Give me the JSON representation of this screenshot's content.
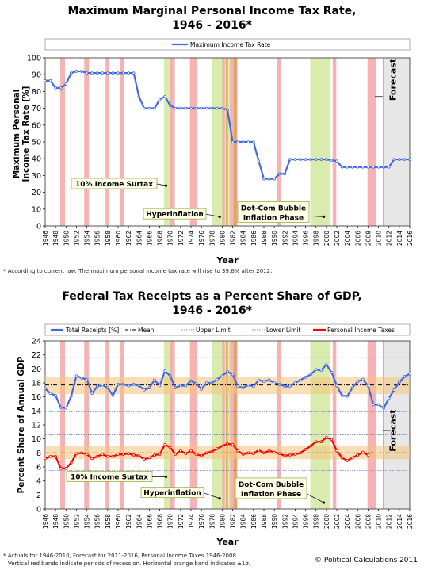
{
  "chart_data": [
    {
      "type": "line",
      "title": "Maximum Marginal Personal Income Tax Rate,",
      "subtitle": "1946 - 2016*",
      "ylabel": "Maximum Personal Income Tax Rate [%]",
      "xlabel": "Year",
      "ylim": [
        0,
        100
      ],
      "yticks": [
        0,
        10,
        20,
        30,
        40,
        50,
        60,
        70,
        80,
        90,
        100
      ],
      "xlim": [
        1946,
        2016
      ],
      "xticks": [
        1946,
        1948,
        1950,
        1952,
        1954,
        1956,
        1958,
        1960,
        1962,
        1964,
        1966,
        1968,
        1970,
        1972,
        1974,
        1976,
        1978,
        1980,
        1982,
        1984,
        1986,
        1988,
        1990,
        1992,
        1994,
        1996,
        1998,
        2000,
        2002,
        2004,
        2006,
        2008,
        2010,
        2012,
        2014,
        2016
      ],
      "legend": {
        "position": "top",
        "entries": [
          "Maximum Income Tax Rate"
        ]
      },
      "forecast_label": "Forecast",
      "forecast_start": 2011,
      "series": [
        {
          "name": "Maximum Income Tax Rate",
          "color": "#4169e1",
          "x": [
            1946,
            1947,
            1948,
            1949,
            1950,
            1951,
            1952,
            1953,
            1954,
            1955,
            1956,
            1957,
            1958,
            1959,
            1960,
            1961,
            1962,
            1963,
            1964,
            1965,
            1966,
            1967,
            1968,
            1969,
            1970,
            1971,
            1972,
            1973,
            1974,
            1975,
            1976,
            1977,
            1978,
            1979,
            1980,
            1981,
            1982,
            1983,
            1984,
            1985,
            1986,
            1987,
            1988,
            1989,
            1990,
            1991,
            1992,
            1993,
            1994,
            1995,
            1996,
            1997,
            1998,
            1999,
            2000,
            2001,
            2002,
            2003,
            2004,
            2005,
            2006,
            2007,
            2008,
            2009,
            2010,
            2011,
            2012,
            2013,
            2014,
            2015,
            2016
          ],
          "values": [
            86.45,
            86.45,
            82.13,
            82.13,
            84.36,
            91,
            92,
            92,
            91,
            91,
            91,
            91,
            91,
            91,
            91,
            91,
            91,
            91,
            77,
            70,
            70,
            70,
            75.25,
            77,
            71.75,
            70,
            70,
            70,
            70,
            70,
            70,
            70,
            70,
            70,
            70,
            69.13,
            50,
            50,
            50,
            50,
            50,
            38.5,
            28,
            28,
            28,
            31,
            31,
            39.6,
            39.6,
            39.6,
            39.6,
            39.6,
            39.6,
            39.6,
            39.6,
            39.1,
            38.6,
            35,
            35,
            35,
            35,
            35,
            35,
            35,
            35,
            35,
            35,
            39.6,
            39.6,
            39.6,
            39.6
          ]
        }
      ],
      "annotations": [
        "10% Income Surtax",
        "Hyperinflation",
        "Dot-Com Bubble",
        "Inflation Phase"
      ]
    },
    {
      "type": "line",
      "title": "Federal Tax Receipts as a Percent Share of GDP,",
      "subtitle": "1946 - 2016*",
      "ylabel": "Percent Share of Annual GDP",
      "xlabel": "Year",
      "ylim": [
        0,
        24
      ],
      "yticks": [
        0,
        2,
        4,
        6,
        8,
        10,
        12,
        14,
        16,
        18,
        20,
        22,
        24
      ],
      "xlim": [
        1946,
        2016
      ],
      "xticks": [
        1946,
        1948,
        1950,
        1952,
        1954,
        1956,
        1958,
        1960,
        1962,
        1964,
        1966,
        1968,
        1970,
        1972,
        1974,
        1976,
        1978,
        1980,
        1982,
        1984,
        1986,
        1988,
        1990,
        1992,
        1994,
        1996,
        1998,
        2000,
        2002,
        2004,
        2006,
        2008,
        2010,
        2012,
        2014,
        2016
      ],
      "legend": {
        "position": "top",
        "entries": [
          "Total Receipts [%]",
          "Mean",
          "Upper Limit",
          "Lower Limit",
          "Personal Income Taxes"
        ]
      },
      "forecast_label": "Forecast",
      "forecast_start": 2011,
      "mean_total": 17.7,
      "band_total": [
        16.4,
        18.9
      ],
      "mean_personal": 8.0,
      "band_personal": [
        7.1,
        9.0
      ],
      "upper_limit_total": 21.6,
      "lower_limit_total": 13.9,
      "upper_limit_personal": 10.6,
      "lower_limit_personal": 5.5,
      "series": [
        {
          "name": "Total Receipts [%]",
          "color": "#4169e1",
          "x": [
            1946,
            1947,
            1948,
            1949,
            1950,
            1951,
            1952,
            1953,
            1954,
            1955,
            1956,
            1957,
            1958,
            1959,
            1960,
            1961,
            1962,
            1963,
            1964,
            1965,
            1966,
            1967,
            1968,
            1969,
            1970,
            1971,
            1972,
            1973,
            1974,
            1975,
            1976,
            1977,
            1978,
            1979,
            1980,
            1981,
            1982,
            1983,
            1984,
            1985,
            1986,
            1987,
            1988,
            1989,
            1990,
            1991,
            1992,
            1993,
            1994,
            1995,
            1996,
            1997,
            1998,
            1999,
            2000,
            2001,
            2002,
            2003,
            2004,
            2005,
            2006,
            2007,
            2008,
            2009,
            2010,
            2011,
            2012,
            2013,
            2014,
            2015,
            2016
          ],
          "values": [
            17.2,
            16.5,
            16.2,
            14.5,
            14.4,
            16.1,
            19.0,
            18.7,
            18.5,
            16.5,
            17.5,
            17.7,
            17.3,
            16.2,
            17.8,
            17.8,
            17.6,
            17.8,
            17.6,
            17.0,
            17.3,
            18.4,
            17.6,
            19.7,
            19.0,
            17.3,
            17.6,
            17.6,
            18.3,
            17.9,
            17.1,
            18.0,
            18.0,
            18.5,
            19.0,
            19.6,
            19.2,
            17.5,
            17.3,
            17.7,
            17.5,
            18.4,
            18.2,
            18.4,
            18.0,
            17.8,
            17.5,
            17.5,
            18.0,
            18.4,
            18.8,
            19.2,
            19.9,
            19.8,
            20.6,
            19.5,
            17.6,
            16.2,
            16.1,
            17.3,
            18.2,
            18.5,
            17.6,
            14.9,
            14.9,
            14.4,
            15.8,
            17.0,
            18.1,
            18.9,
            19.3
          ]
        },
        {
          "name": "Personal Income Taxes",
          "color": "#ff0000",
          "x": [
            1946,
            1947,
            1948,
            1949,
            1950,
            1951,
            1952,
            1953,
            1954,
            1955,
            1956,
            1957,
            1958,
            1959,
            1960,
            1961,
            1962,
            1963,
            1964,
            1965,
            1966,
            1967,
            1968,
            1969,
            1970,
            1971,
            1972,
            1973,
            1974,
            1975,
            1976,
            1977,
            1978,
            1979,
            1980,
            1981,
            1982,
            1983,
            1984,
            1985,
            1986,
            1987,
            1988,
            1989,
            1990,
            1991,
            1992,
            1993,
            1994,
            1995,
            1996,
            1997,
            1998,
            1999,
            2000,
            2001,
            2002,
            2003,
            2004,
            2005,
            2006,
            2007,
            2008
          ],
          "values": [
            7.2,
            7.5,
            7.5,
            5.8,
            5.8,
            6.6,
            7.9,
            8.0,
            7.8,
            7.2,
            7.5,
            7.8,
            7.5,
            7.5,
            7.8,
            7.8,
            7.9,
            7.7,
            7.6,
            7.1,
            7.3,
            7.7,
            7.8,
            9.2,
            8.8,
            7.8,
            8.3,
            7.9,
            8.3,
            7.8,
            7.6,
            8.0,
            8.2,
            8.6,
            9.0,
            9.3,
            9.2,
            8.3,
            7.8,
            8.0,
            7.9,
            8.4,
            8.0,
            8.3,
            8.1,
            7.9,
            7.6,
            7.7,
            7.8,
            8.0,
            8.5,
            9.0,
            9.6,
            9.6,
            10.2,
            9.9,
            8.3,
            7.3,
            6.9,
            7.3,
            7.7,
            8.1,
            7.7
          ]
        }
      ],
      "annotations": [
        "10% Income Surtax",
        "Hyperinflation",
        "Dot-Com Bubble",
        "Inflation Phase"
      ]
    }
  ],
  "recessions": [
    [
      1948.9,
      1949.8
    ],
    [
      1953.5,
      1954.4
    ],
    [
      1957.6,
      1958.3
    ],
    [
      1960.3,
      1961.1
    ],
    [
      1969.9,
      1970.9
    ],
    [
      1973.8,
      1975.2
    ],
    [
      1980.0,
      1980.5
    ],
    [
      1981.5,
      1982.9
    ],
    [
      1990.5,
      1991.2
    ],
    [
      2001.2,
      2001.9
    ],
    [
      2007.9,
      2009.5
    ]
  ],
  "highlights_green": [
    [
      1968.8,
      1970.3
    ],
    [
      1978.0,
      1981.8
    ],
    [
      1996.9,
      2000.8
    ]
  ],
  "highlights_orange": [
    [
      1980.7,
      1981.1
    ],
    [
      1982.2,
      1982.8
    ]
  ],
  "footnote1": "* According to current law.  The maximum personal income tax rate will rise to 39.6% after 2012.",
  "footnote2a": "* Actuals for 1946-2010,  Forecast for 2011-2016,  Personal Income Taxes 1946-2008.",
  "footnote2b": "Vertical red bands indicate periods of recession.  Horizontal orange band indicates ±1σ.",
  "copyright": "© Political Calculations 2011"
}
